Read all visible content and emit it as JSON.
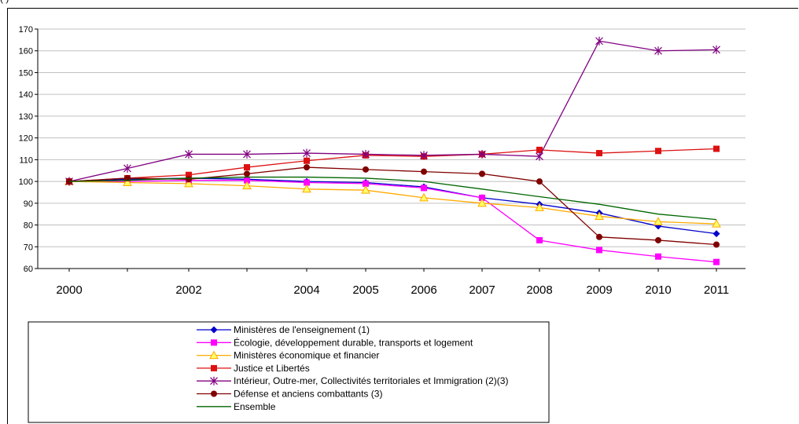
{
  "chart_data": {
    "type": "line",
    "title": "",
    "xlabel": "",
    "ylabel": "",
    "ylim": [
      60,
      170
    ],
    "yticks": [
      60,
      70,
      80,
      90,
      100,
      110,
      120,
      130,
      140,
      150,
      160,
      170
    ],
    "categories": [
      "2000",
      "2001",
      "2002",
      "2003",
      "2004",
      "2005",
      "2006",
      "2007",
      "2008",
      "2009",
      "2010",
      "2011"
    ],
    "category_labels": [
      "2000",
      "",
      "2002",
      "",
      "2004",
      "2005",
      "2006",
      "2007",
      "2008",
      "2009",
      "2010",
      "2011"
    ],
    "grid": "horizontal",
    "legend_placement": "bottom",
    "series": [
      {
        "name": "Ministères de l'enseignement (1)",
        "color": "#0000cc",
        "marker": "diamond",
        "values": [
          100,
          101,
          101.5,
          101,
          100,
          99.5,
          97.5,
          92.5,
          89.5,
          85.5,
          79.5,
          76
        ]
      },
      {
        "name": "Écologie, développement durable, transports et logement",
        "color": "#ff00ff",
        "marker": "square",
        "values": [
          100,
          100,
          100.5,
          100.5,
          99.5,
          99,
          97,
          92.5,
          73,
          68.5,
          65.5,
          63
        ]
      },
      {
        "name": "Ministères économique et financier",
        "color": "#ffaa00",
        "marker": "triangle",
        "values": [
          100,
          99.5,
          99,
          98,
          96.5,
          96,
          92.5,
          90,
          88,
          84,
          81.5,
          80.5
        ]
      },
      {
        "name": "Justice et Libertés",
        "color": "#dd1111",
        "marker": "square",
        "values": [
          100,
          101.5,
          103,
          106.5,
          109.5,
          112,
          111.5,
          112.5,
          114.5,
          113,
          114,
          115
        ]
      },
      {
        "name": "Intérieur, Outre-mer, Collectivités territoriales et Immigration (2)(3)",
        "color": "#800080",
        "marker": "star",
        "values": [
          100,
          106,
          112.5,
          112.5,
          113,
          112.5,
          112,
          112.5,
          111.5,
          164.5,
          160,
          160.5
        ]
      },
      {
        "name": "Défense et anciens combattants (3)",
        "color": "#800000",
        "marker": "circle",
        "values": [
          100,
          101.5,
          101,
          103.5,
          106.5,
          105.5,
          104.5,
          103.5,
          100,
          74.5,
          73,
          71
        ]
      },
      {
        "name": "Ensemble",
        "color": "#006600",
        "marker": "none",
        "values": [
          100,
          100.5,
          101.5,
          102,
          102,
          101.5,
          100,
          96.5,
          93,
          89.5,
          85,
          82.5
        ]
      }
    ]
  },
  "top_caption": "(                                              )"
}
